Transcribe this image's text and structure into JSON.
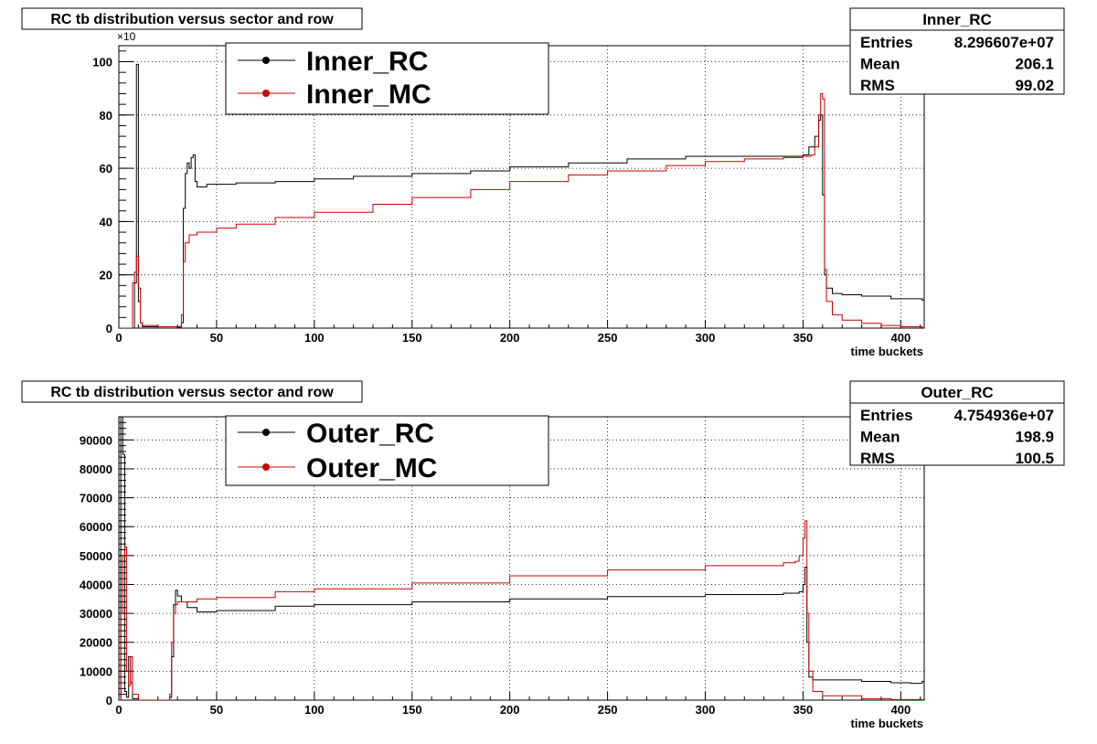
{
  "chart_data": [
    {
      "type": "line",
      "title": "RC tb distribution versus sector and row",
      "xlabel": "time buckets",
      "ylabel": "",
      "xlim": [
        0,
        412
      ],
      "ylim": [
        0,
        106
      ],
      "multiplier_label": "×10",
      "xticks": [
        0,
        50,
        100,
        150,
        200,
        250,
        300,
        350,
        400
      ],
      "yticks": [
        0,
        20,
        40,
        60,
        80,
        100
      ],
      "grid": true,
      "legend_position": "top-center",
      "stats": {
        "name": "Inner_RC",
        "rows": [
          {
            "label": "Entries",
            "value": "8.296607e+07"
          },
          {
            "label": "Mean",
            "value": "206.1"
          },
          {
            "label": "RMS",
            "value": "99.02"
          }
        ]
      },
      "series": [
        {
          "name": "Inner_RC",
          "color": "#000000",
          "points": [
            [
              0,
              0
            ],
            [
              7,
              0
            ],
            [
              8,
              17
            ],
            [
              9,
              99
            ],
            [
              10,
              10
            ],
            [
              11,
              2
            ],
            [
              12,
              0.5
            ],
            [
              30,
              0.4
            ],
            [
              32,
              2
            ],
            [
              33,
              45
            ],
            [
              34,
              58
            ],
            [
              35,
              62
            ],
            [
              36,
              60
            ],
            [
              37,
              64
            ],
            [
              38,
              65
            ],
            [
              39,
              55
            ],
            [
              40,
              53
            ],
            [
              45,
              54
            ],
            [
              50,
              54
            ],
            [
              60,
              54.5
            ],
            [
              80,
              55
            ],
            [
              100,
              56
            ],
            [
              120,
              57
            ],
            [
              150,
              58
            ],
            [
              180,
              59
            ],
            [
              200,
              60.5
            ],
            [
              230,
              62
            ],
            [
              260,
              63.5
            ],
            [
              290,
              64.5
            ],
            [
              320,
              64.5
            ],
            [
              340,
              64.5
            ],
            [
              350,
              65
            ],
            [
              353,
              68
            ],
            [
              356,
              72
            ],
            [
              358,
              78
            ],
            [
              359,
              80
            ],
            [
              360,
              50
            ],
            [
              361,
              20
            ],
            [
              362,
              15
            ],
            [
              365,
              13
            ],
            [
              370,
              12.5
            ],
            [
              380,
              12
            ],
            [
              395,
              11
            ],
            [
              411,
              10.5
            ]
          ]
        },
        {
          "name": "Inner_MC",
          "color": "#cc0000",
          "points": [
            [
              0,
              0
            ],
            [
              6,
              0
            ],
            [
              7,
              17
            ],
            [
              8,
              21
            ],
            [
              9,
              27
            ],
            [
              10,
              15
            ],
            [
              11,
              2
            ],
            [
              12,
              1
            ],
            [
              20,
              0.5
            ],
            [
              30,
              0.6
            ],
            [
              32,
              5
            ],
            [
              33,
              25
            ],
            [
              34,
              32
            ],
            [
              36,
              35
            ],
            [
              40,
              36
            ],
            [
              50,
              37.5
            ],
            [
              60,
              39
            ],
            [
              80,
              41.5
            ],
            [
              100,
              43.5
            ],
            [
              130,
              46.5
            ],
            [
              150,
              49
            ],
            [
              180,
              52
            ],
            [
              200,
              55
            ],
            [
              230,
              57.5
            ],
            [
              250,
              59
            ],
            [
              280,
              61
            ],
            [
              300,
              62.5
            ],
            [
              320,
              63.5
            ],
            [
              340,
              64
            ],
            [
              350,
              64.5
            ],
            [
              354,
              65
            ],
            [
              356,
              68
            ],
            [
              358,
              80
            ],
            [
              359,
              88
            ],
            [
              360,
              86
            ],
            [
              361,
              22
            ],
            [
              362,
              10
            ],
            [
              365,
              5
            ],
            [
              370,
              3
            ],
            [
              380,
              1.8
            ],
            [
              390,
              1
            ],
            [
              400,
              0.5
            ],
            [
              411,
              0.2
            ]
          ]
        }
      ]
    },
    {
      "type": "line",
      "title": "RC tb distribution versus sector and row",
      "xlabel": "time buckets",
      "ylabel": "",
      "xlim": [
        0,
        412
      ],
      "ylim": [
        0,
        98000
      ],
      "xticks": [
        0,
        50,
        100,
        150,
        200,
        250,
        300,
        350,
        400
      ],
      "yticks": [
        0,
        10000,
        20000,
        30000,
        40000,
        50000,
        60000,
        70000,
        80000,
        90000
      ],
      "grid": true,
      "legend_position": "top-center",
      "stats": {
        "name": "Outer_RC",
        "rows": [
          {
            "label": "Entries",
            "value": "4.754936e+07"
          },
          {
            "label": "Mean",
            "value": "198.9"
          },
          {
            "label": "RMS",
            "value": "100.5"
          }
        ]
      },
      "series": [
        {
          "name": "Outer_RC",
          "color": "#000000",
          "points": [
            [
              0,
              0
            ],
            [
              1,
              98000
            ],
            [
              2,
              85000
            ],
            [
              3,
              3000
            ],
            [
              4,
              1000
            ],
            [
              5,
              15000
            ],
            [
              6,
              6000
            ],
            [
              7,
              500
            ],
            [
              10,
              0
            ],
            [
              20,
              0
            ],
            [
              26,
              1000
            ],
            [
              27,
              15000
            ],
            [
              28,
              33000
            ],
            [
              29,
              38000
            ],
            [
              30,
              36000
            ],
            [
              32,
              34000
            ],
            [
              35,
              32000
            ],
            [
              40,
              30500
            ],
            [
              50,
              31000
            ],
            [
              80,
              32500
            ],
            [
              100,
              33000
            ],
            [
              150,
              34000
            ],
            [
              200,
              35000
            ],
            [
              250,
              35800
            ],
            [
              300,
              36500
            ],
            [
              340,
              37000
            ],
            [
              348,
              37500
            ],
            [
              350,
              40000
            ],
            [
              351,
              46000
            ],
            [
              352,
              20000
            ],
            [
              353,
              8000
            ],
            [
              355,
              7000
            ],
            [
              360,
              7000
            ],
            [
              380,
              6500
            ],
            [
              395,
              6000
            ],
            [
              405,
              5800
            ],
            [
              411,
              6500
            ]
          ]
        },
        {
          "name": "Outer_MC",
          "color": "#cc0000",
          "points": [
            [
              0,
              0
            ],
            [
              1,
              30000
            ],
            [
              2,
              50000
            ],
            [
              3,
              53000
            ],
            [
              4,
              10000
            ],
            [
              5,
              5000
            ],
            [
              6,
              15000
            ],
            [
              7,
              2000
            ],
            [
              10,
              0
            ],
            [
              20,
              0
            ],
            [
              26,
              2000
            ],
            [
              27,
              20000
            ],
            [
              28,
              30000
            ],
            [
              29,
              33000
            ],
            [
              30,
              34000
            ],
            [
              40,
              35000
            ],
            [
              50,
              35500
            ],
            [
              80,
              37500
            ],
            [
              100,
              38500
            ],
            [
              150,
              40500
            ],
            [
              200,
              43000
            ],
            [
              250,
              45000
            ],
            [
              300,
              46500
            ],
            [
              340,
              47500
            ],
            [
              346,
              48000
            ],
            [
              348,
              50000
            ],
            [
              350,
              56000
            ],
            [
              351,
              62000
            ],
            [
              352,
              30000
            ],
            [
              353,
              10000
            ],
            [
              355,
              3000
            ],
            [
              360,
              1500
            ],
            [
              380,
              500
            ],
            [
              395,
              200
            ],
            [
              411,
              100
            ]
          ]
        }
      ]
    }
  ]
}
